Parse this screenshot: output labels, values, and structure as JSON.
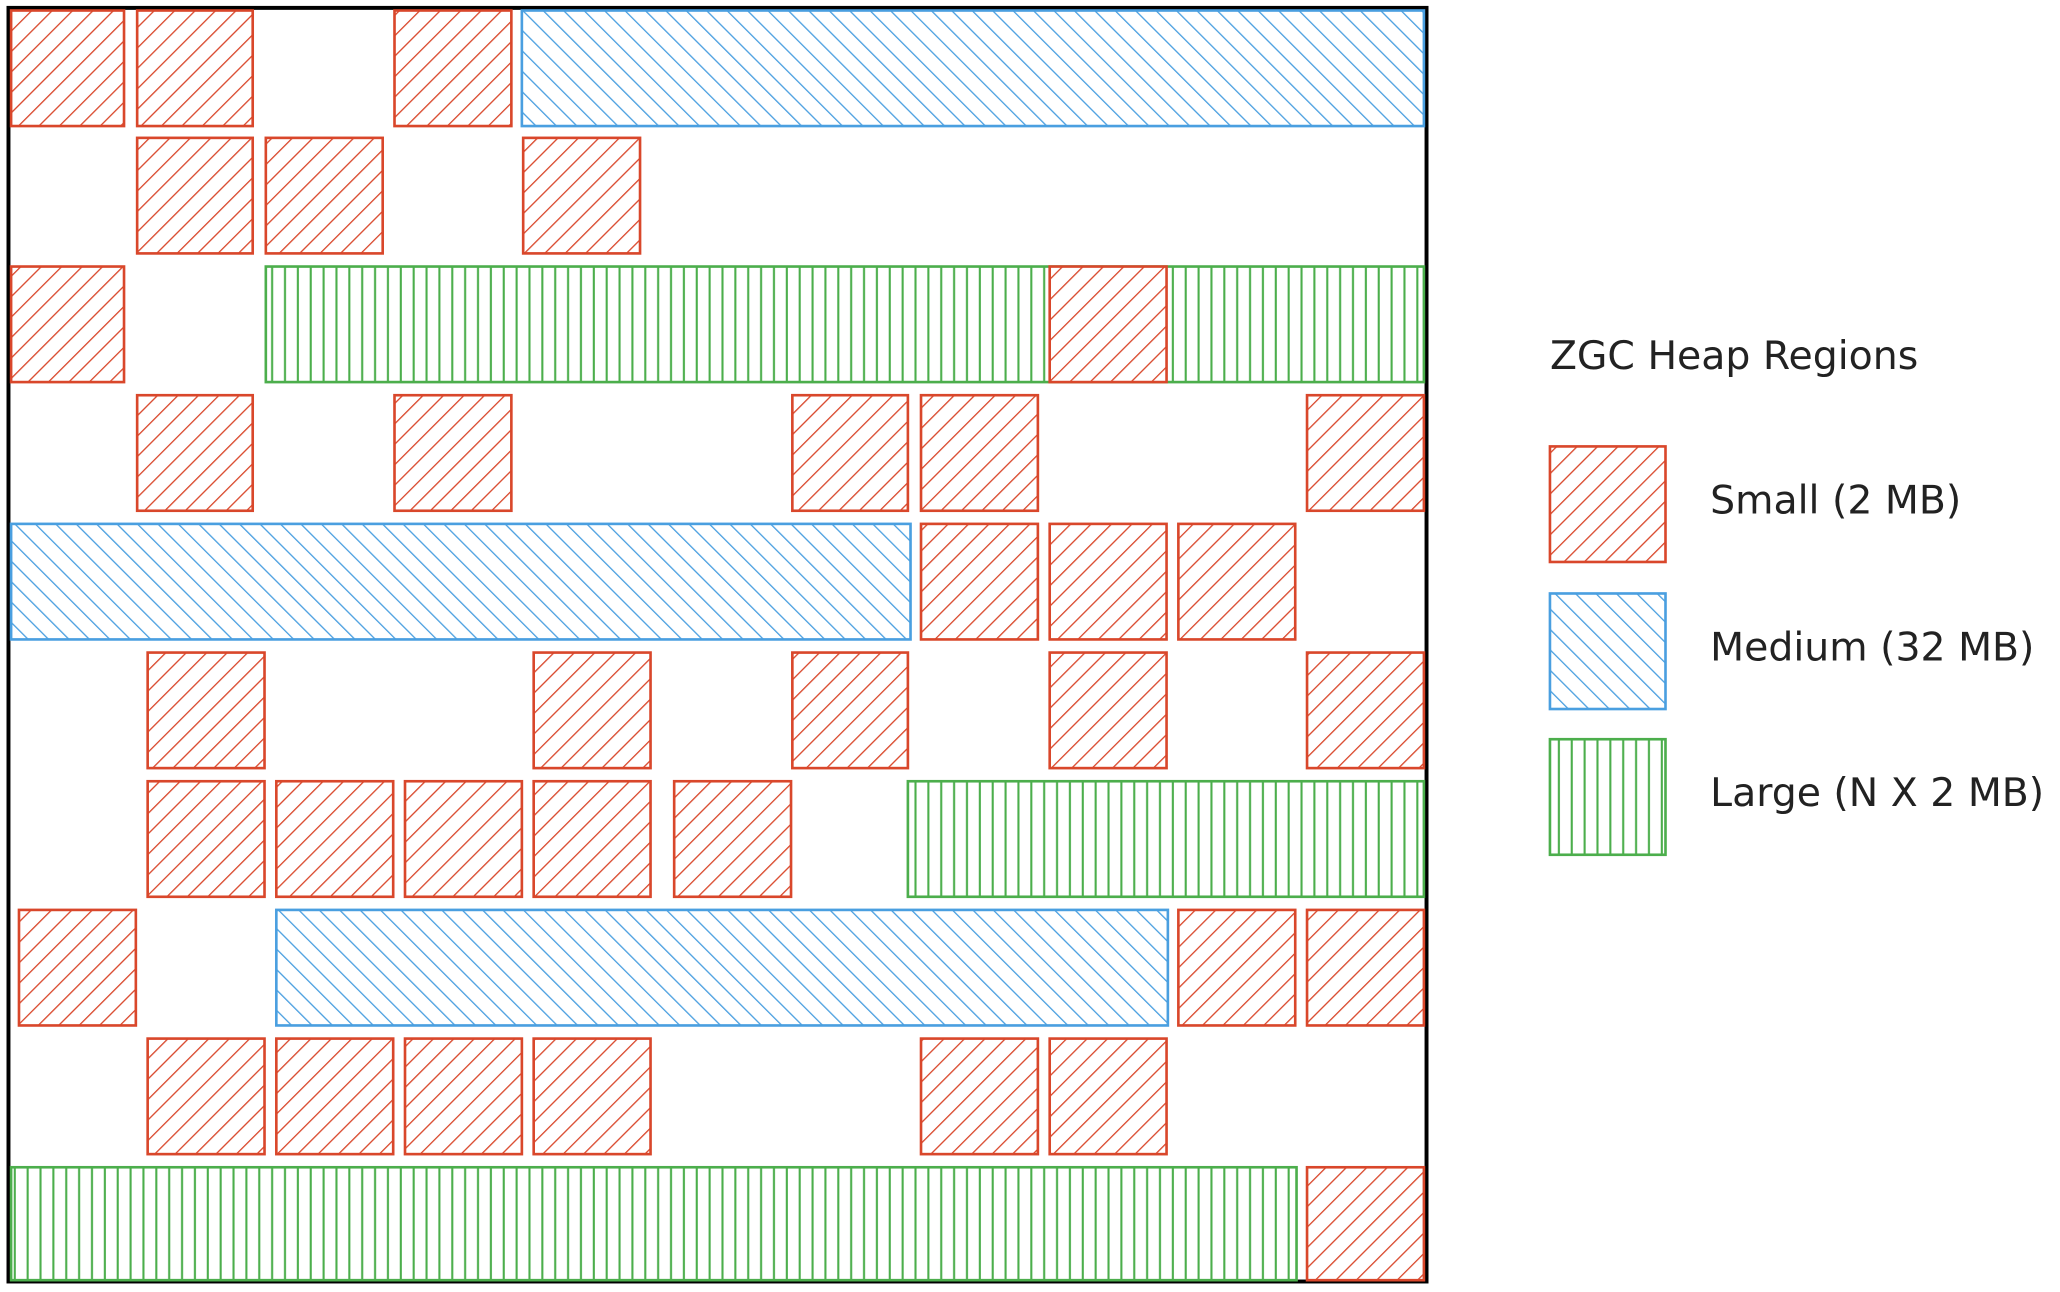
{
  "legend": {
    "title": "ZGC Heap Regions",
    "items": [
      {
        "label": "Small (2 MB)"
      },
      {
        "label": "Medium (32 MB)"
      },
      {
        "label": "Large (N X 2 MB)"
      }
    ]
  }
}
